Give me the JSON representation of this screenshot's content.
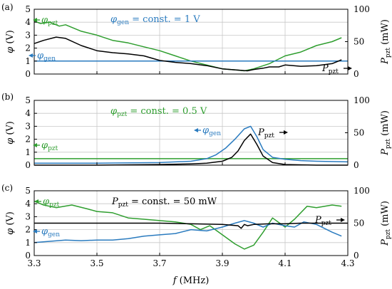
{
  "chart_data": [
    {
      "type": "line",
      "panel_label": "(a)",
      "annotation": "φgen = const. = 1 V",
      "annotation_color": "#2a7bbf",
      "xlim": [
        3.3,
        4.3
      ],
      "ylim_left": [
        0,
        5
      ],
      "ylim_right": [
        0,
        100
      ],
      "x_ticks": [
        "3.3",
        "3.5",
        "3.7",
        "3.9",
        "4.1",
        "4.3"
      ],
      "y_ticks_left": [
        "0",
        "1",
        "2",
        "3",
        "4",
        "5"
      ],
      "y_ticks_right": [
        "0",
        "50",
        "100"
      ],
      "ylabel_left": "φ (V)",
      "ylabel_right": "Ppzt (mW)",
      "grid": true,
      "series": [
        {
          "name": "φpzt",
          "axis": "left",
          "color": "#2f9e2f",
          "label_arrow": "left",
          "x": [
            3.3,
            3.32,
            3.35,
            3.38,
            3.4,
            3.45,
            3.5,
            3.55,
            3.6,
            3.65,
            3.7,
            3.75,
            3.8,
            3.85,
            3.9,
            3.95,
            3.97,
            4.0,
            4.05,
            4.1,
            4.15,
            4.2,
            4.25,
            4.28
          ],
          "y": [
            4.1,
            3.9,
            4.0,
            3.7,
            3.8,
            3.3,
            3.0,
            2.6,
            2.4,
            2.1,
            1.8,
            1.4,
            1.0,
            0.7,
            0.4,
            0.3,
            0.25,
            0.4,
            0.8,
            1.4,
            1.7,
            2.2,
            2.5,
            2.8
          ]
        },
        {
          "name": "φgen",
          "axis": "left",
          "color": "#2a7bbf",
          "label_arrow": "left",
          "x": [
            3.3,
            4.3
          ],
          "y": [
            1.0,
            1.0
          ]
        },
        {
          "name": "Ppzt",
          "axis": "right",
          "color": "#000000",
          "label_arrow": "right",
          "x": [
            3.3,
            3.33,
            3.37,
            3.4,
            3.45,
            3.5,
            3.55,
            3.6,
            3.65,
            3.7,
            3.75,
            3.8,
            3.85,
            3.9,
            3.95,
            3.98,
            4.0,
            4.03,
            4.05,
            4.08,
            4.1,
            4.15,
            4.2,
            4.25,
            4.28
          ],
          "y": [
            47,
            52,
            57,
            55,
            44,
            36,
            33,
            31,
            28,
            21,
            18,
            16,
            13,
            8,
            6,
            5,
            7,
            9,
            11,
            11,
            14,
            12,
            13,
            16,
            22
          ]
        }
      ]
    },
    {
      "type": "line",
      "panel_label": "(b)",
      "annotation": "φpzt = const. = 0.5 V",
      "annotation_color": "#2f9e2f",
      "xlim": [
        3.3,
        4.3
      ],
      "ylim_left": [
        0,
        5
      ],
      "ylim_right": [
        0,
        100
      ],
      "x_ticks": [
        "3.3",
        "3.5",
        "3.7",
        "3.9",
        "4.1",
        "4.3"
      ],
      "y_ticks_left": [
        "0",
        "1",
        "2",
        "3",
        "4",
        "5"
      ],
      "y_ticks_right": [
        "0",
        "50",
        "100"
      ],
      "ylabel_left": "φ (V)",
      "ylabel_right": "Ppzt (mW)",
      "grid": true,
      "series": [
        {
          "name": "φpzt",
          "axis": "left",
          "color": "#2f9e2f",
          "label_arrow": "left",
          "x": [
            3.3,
            4.3
          ],
          "y": [
            0.5,
            0.5
          ]
        },
        {
          "name": "φgen",
          "axis": "left",
          "color": "#2a7bbf",
          "label_arrow": "left",
          "x": [
            3.3,
            3.5,
            3.7,
            3.8,
            3.85,
            3.88,
            3.91,
            3.94,
            3.97,
            3.99,
            4.01,
            4.03,
            4.06,
            4.1,
            4.15,
            4.2,
            4.3
          ],
          "y": [
            0.15,
            0.15,
            0.2,
            0.3,
            0.5,
            0.8,
            1.3,
            2.0,
            2.8,
            3.0,
            2.2,
            1.2,
            0.6,
            0.45,
            0.35,
            0.3,
            0.25
          ]
        },
        {
          "name": "Ppzt",
          "axis": "right",
          "color": "#000000",
          "label_arrow": "right",
          "x": [
            3.3,
            3.5,
            3.7,
            3.8,
            3.85,
            3.9,
            3.93,
            3.95,
            3.97,
            3.99,
            4.01,
            4.03,
            4.06,
            4.1,
            4.2,
            4.3
          ],
          "y": [
            0,
            0,
            1,
            2,
            3,
            6,
            12,
            22,
            38,
            48,
            32,
            14,
            4,
            1,
            0,
            0
          ]
        }
      ]
    },
    {
      "type": "line",
      "panel_label": "(c)",
      "annotation": "Ppzt = const. = 50 mW",
      "annotation_color": "#000000",
      "xlim": [
        3.3,
        4.3
      ],
      "ylim_left": [
        0,
        5
      ],
      "ylim_right": [
        0,
        100
      ],
      "x_ticks": [
        "3.3",
        "3.5",
        "3.7",
        "3.9",
        "4.1",
        "4.3"
      ],
      "y_ticks_left": [
        "0",
        "1",
        "2",
        "3",
        "4",
        "5"
      ],
      "y_ticks_right": [
        "0",
        "50",
        "100"
      ],
      "xlabel": "f (MHz)",
      "ylabel_left": "φ (V)",
      "ylabel_right": "Ppzt (mW)",
      "grid": true,
      "series": [
        {
          "name": "φpzt",
          "axis": "left",
          "color": "#2f9e2f",
          "label_arrow": "left",
          "x": [
            3.3,
            3.33,
            3.37,
            3.42,
            3.47,
            3.5,
            3.55,
            3.6,
            3.65,
            3.7,
            3.75,
            3.8,
            3.83,
            3.86,
            3.9,
            3.94,
            3.97,
            4.0,
            4.03,
            4.06,
            4.1,
            4.13,
            4.17,
            4.2,
            4.25,
            4.28
          ],
          "y": [
            4.2,
            3.9,
            3.7,
            3.9,
            3.6,
            3.4,
            3.3,
            2.9,
            2.8,
            2.7,
            2.6,
            2.4,
            2.0,
            2.3,
            1.6,
            0.9,
            0.5,
            0.8,
            1.8,
            2.9,
            2.2,
            2.8,
            3.8,
            3.7,
            3.9,
            3.8
          ]
        },
        {
          "name": "φgen",
          "axis": "left",
          "color": "#2a7bbf",
          "label_arrow": "left",
          "x": [
            3.3,
            3.35,
            3.4,
            3.45,
            3.5,
            3.55,
            3.6,
            3.65,
            3.7,
            3.75,
            3.8,
            3.85,
            3.9,
            3.94,
            3.97,
            4.0,
            4.03,
            4.06,
            4.1,
            4.13,
            4.16,
            4.2,
            4.25,
            4.28
          ],
          "y": [
            1.0,
            1.1,
            1.2,
            1.15,
            1.2,
            1.2,
            1.3,
            1.5,
            1.6,
            1.7,
            2.0,
            1.9,
            2.2,
            2.5,
            2.7,
            2.5,
            2.2,
            2.5,
            2.3,
            2.2,
            2.6,
            2.4,
            1.8,
            1.5
          ]
        },
        {
          "name": "Ppzt",
          "axis": "right",
          "color": "#000000",
          "label_arrow": "right",
          "x": [
            3.3,
            3.4,
            3.5,
            3.6,
            3.7,
            3.8,
            3.9,
            3.95,
            3.96,
            3.97,
            3.98,
            4.0,
            4.05,
            4.1,
            4.15,
            4.2,
            4.3
          ],
          "y": [
            50,
            50,
            50,
            50,
            50,
            49,
            48,
            46,
            42,
            48,
            46,
            48,
            49,
            49,
            50,
            50,
            50
          ]
        }
      ]
    }
  ]
}
